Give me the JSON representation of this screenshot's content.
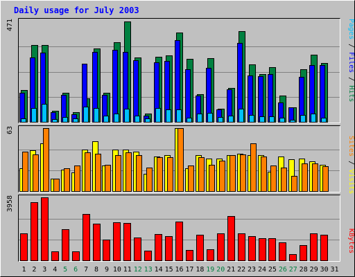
{
  "chart_data": [
    {
      "type": "bar",
      "panel": "hits-files-pages",
      "title": "Daily usage for July 2003",
      "ymax_label": "471",
      "ymax": 471,
      "side_label": {
        "parts": [
          "Pages",
          "Files",
          "Hits"
        ],
        "separator": " / "
      },
      "categories": [
        "1",
        "2",
        "3",
        "4",
        "5",
        "6",
        "7",
        "8",
        "9",
        "10",
        "11",
        "12",
        "13",
        "14",
        "15",
        "16",
        "17",
        "18",
        "19",
        "20",
        "21",
        "22",
        "23",
        "24",
        "25",
        "26",
        "27",
        "28",
        "29",
        "30",
        "31"
      ],
      "series": [
        {
          "name": "Hits",
          "color": "#008040",
          "values": [
            152,
            358,
            360,
            56,
            137,
            48,
            112,
            344,
            139,
            372,
            467,
            301,
            41,
            305,
            310,
            416,
            295,
            132,
            299,
            63,
            160,
            423,
            269,
            224,
            255,
            125,
            70,
            247,
            315,
            277,
            0
          ]
        },
        {
          "name": "Files",
          "color": "#0000ff",
          "values": [
            138,
            302,
            325,
            48,
            128,
            40,
            272,
            326,
            127,
            335,
            327,
            289,
            33,
            279,
            286,
            382,
            248,
            124,
            254,
            61,
            155,
            370,
            218,
            214,
            225,
            93,
            69,
            213,
            267,
            265,
            0
          ]
        },
        {
          "name": "Pages",
          "color": "#00c0ff",
          "values": [
            18,
            66,
            86,
            16,
            25,
            18,
            73,
            67,
            32,
            42,
            63,
            33,
            20,
            68,
            61,
            62,
            21,
            41,
            45,
            25,
            33,
            65,
            34,
            28,
            29,
            21,
            12,
            35,
            42,
            22,
            0
          ]
        }
      ]
    },
    {
      "type": "bar",
      "panel": "visits-sites",
      "ymax_label": "63",
      "ymax": 63,
      "side_label": {
        "parts": [
          "Sites",
          "Visits"
        ],
        "separator": " / "
      },
      "series": [
        {
          "name": "Visits",
          "color": "#ffff00",
          "values": [
            23,
            41,
            48,
            13,
            22,
            19,
            42,
            50,
            26,
            42,
            42,
            40,
            18,
            35,
            36,
            63,
            23,
            36,
            33,
            33,
            36,
            38,
            36,
            36,
            20,
            35,
            32,
            33,
            30,
            27,
            0
          ]
        },
        {
          "name": "Sites",
          "color": "#ff8000",
          "values": [
            40,
            37,
            63,
            13,
            23,
            26,
            39,
            38,
            27,
            36,
            39,
            36,
            24,
            34,
            34,
            63,
            26,
            34,
            27,
            31,
            36,
            37,
            48,
            35,
            26,
            24,
            16,
            28,
            28,
            25,
            0
          ]
        }
      ]
    },
    {
      "type": "bar",
      "panel": "kbytes",
      "ymax_label": "3958",
      "ymax": 3958,
      "side_label": {
        "parts": [
          "KBytes"
        ],
        "separator": ""
      },
      "series": [
        {
          "name": "KBytes",
          "color": "#ff0000",
          "values": [
            1700,
            3640,
            3958,
            610,
            1990,
            620,
            2910,
            2310,
            1340,
            2430,
            2380,
            1480,
            640,
            1670,
            1570,
            2460,
            690,
            1640,
            720,
            1700,
            2790,
            1720,
            1560,
            1420,
            1420,
            1170,
            420,
            980,
            1700,
            1620,
            0
          ]
        }
      ]
    }
  ],
  "colors": {
    "background": "#c0c0c0",
    "title": "#0000ff",
    "ymax_label": "#000000",
    "weekday": "#000000",
    "weekend": "#008040",
    "gridline": "#808080"
  },
  "weekend_days": [
    "5",
    "6",
    "12",
    "13",
    "19",
    "20",
    "26",
    "27"
  ]
}
